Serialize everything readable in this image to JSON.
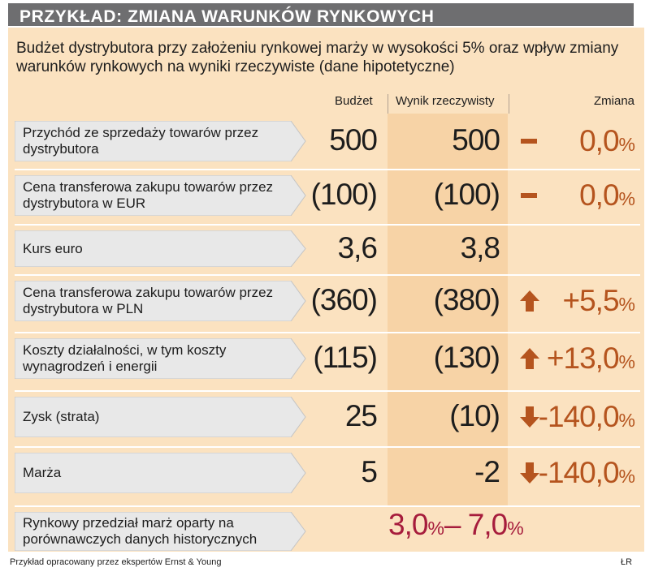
{
  "header": {
    "title": "PRZYKŁAD: ZMIANA WARUNKÓW RYNKOWYCH"
  },
  "subtitle": "Budżet dystrybutora przy założeniu rynkowej marży w wysokości 5% oraz wpływ zmiany warunków rynkowych na wyniki rzeczywiste (dane hipotetyczne)",
  "columns": {
    "budget": "Budżet",
    "actual": "Wynik rzeczywisty",
    "change": "Zmiana"
  },
  "colors": {
    "frame": "#fbe2c0",
    "band": "#f7d3a6",
    "header": "#6e6e70",
    "change_text": "#b5541e",
    "range_text": "#a61c3c"
  },
  "rows": [
    {
      "label": "Przychód ze sprzedaży towarów przez dystrybutora",
      "budget": "500",
      "actual": "500",
      "change_icon": "dash-icon",
      "change_value": "0,0",
      "change_unit": "%"
    },
    {
      "label": "Cena transferowa zakupu towarów przez dystrybutora w EUR",
      "budget": "(100)",
      "actual": "(100)",
      "change_icon": "dash-icon",
      "change_value": "0,0",
      "change_unit": "%"
    },
    {
      "label": "Kurs euro",
      "budget": "3,6",
      "actual": "3,8",
      "change_icon": "",
      "change_value": "",
      "change_unit": ""
    },
    {
      "label": "Cena transferowa zakupu towarów przez dystrybutora w PLN",
      "budget": "(360)",
      "actual": "(380)",
      "change_icon": "arrow-up-icon",
      "change_value": "+5,5",
      "change_unit": "%"
    },
    {
      "label": "Koszty działalności, w tym koszty wynagrodzeń i energii",
      "budget": "(115)",
      "actual": "(130)",
      "change_icon": "arrow-up-icon",
      "change_value": "+13,0",
      "change_unit": "%"
    },
    {
      "label": "Zysk (strata)",
      "budget": "25",
      "actual": "(10)",
      "change_icon": "arrow-down-icon",
      "change_value": "-140,0",
      "change_unit": "%"
    },
    {
      "label": "Marża",
      "budget": "5",
      "actual": "-2",
      "change_icon": "arrow-down-icon",
      "change_value": "-140,0",
      "change_unit": "%"
    }
  ],
  "range": {
    "label": "Rynkowy przedział marż oparty na porównawczych danych historycznych",
    "low": "3,0",
    "low_unit": "%",
    "separator": "– ",
    "high": "7,0",
    "high_unit": "%"
  },
  "footer": {
    "source": "Przykład opracowany przez ekspertów Ernst & Young",
    "author": "ŁR"
  }
}
